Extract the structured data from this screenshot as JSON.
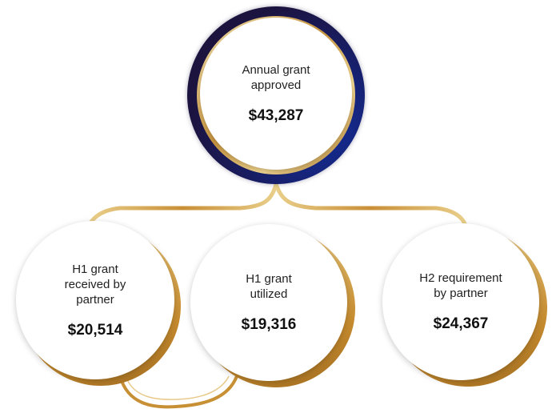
{
  "top": {
    "label": "Annual grant\napproved",
    "value": "$43,287"
  },
  "children": [
    {
      "label": "H1 grant\nreceived by\npartner",
      "value": "$20,514"
    },
    {
      "label": "H1 grant\nutilized",
      "value": "$19,316"
    },
    {
      "label": "H2 requirement\nby partner",
      "value": "$24,367"
    }
  ],
  "colors": {
    "gold": "#d4a04a",
    "navy": "#17206e",
    "text": "#1a1a1a"
  }
}
